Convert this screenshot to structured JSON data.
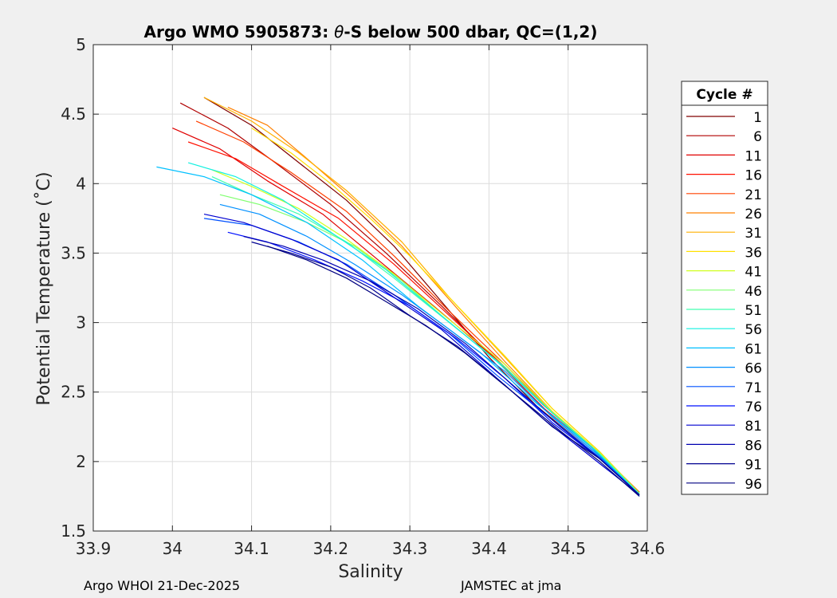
{
  "chart_data": {
    "type": "line",
    "title_parts": [
      "Argo WMO 5905873: ",
      "θ",
      "-S below 500 dbar,  QC=(1,2)"
    ],
    "xlabel": "Salinity",
    "ylabel": "Potential Temperature (˚C)",
    "xlim": [
      33.9,
      34.6
    ],
    "ylim": [
      1.5,
      5
    ],
    "xticks": [
      33.9,
      34.0,
      34.1,
      34.2,
      34.3,
      34.4,
      34.5,
      34.6
    ],
    "xtick_labels": [
      "33.9",
      "34",
      "34.1",
      "34.2",
      "34.3",
      "34.4",
      "34.5",
      "34.6"
    ],
    "yticks": [
      1.5,
      2,
      2.5,
      3,
      3.5,
      4,
      4.5,
      5
    ],
    "ytick_labels": [
      "1.5",
      "2",
      "2.5",
      "3",
      "3.5",
      "4",
      "4.5",
      "5"
    ],
    "grid": true,
    "legend_title": "Cycle #",
    "legend_position": "right",
    "series": [
      {
        "name": "1",
        "color": "#800000",
        "x": [
          34.04,
          34.1,
          34.16,
          34.22,
          34.28,
          34.34,
          34.4,
          34.46,
          34.52,
          34.59
        ],
        "y": [
          4.62,
          4.42,
          4.15,
          3.88,
          3.55,
          3.15,
          2.75,
          2.4,
          2.12,
          1.77
        ]
      },
      {
        "name": "6",
        "color": "#b00000",
        "x": [
          34.01,
          34.07,
          34.13,
          34.2,
          34.27,
          34.34,
          34.4,
          34.47,
          34.53,
          34.59
        ],
        "y": [
          4.58,
          4.4,
          4.15,
          3.85,
          3.5,
          3.12,
          2.78,
          2.4,
          2.1,
          1.78
        ]
      },
      {
        "name": "11",
        "color": "#e00000",
        "x": [
          34.0,
          34.06,
          34.12,
          34.19,
          34.26,
          34.33,
          34.4,
          34.47,
          34.53,
          34.59
        ],
        "y": [
          4.4,
          4.25,
          4.02,
          3.78,
          3.45,
          3.12,
          2.78,
          2.38,
          2.1,
          1.77
        ]
      },
      {
        "name": "16",
        "color": "#ff1000",
        "x": [
          34.02,
          34.08,
          34.14,
          34.21,
          34.28,
          34.35,
          34.42,
          34.48,
          34.54,
          34.59
        ],
        "y": [
          4.3,
          4.18,
          3.98,
          3.75,
          3.42,
          3.05,
          2.68,
          2.35,
          2.05,
          1.78
        ]
      },
      {
        "name": "21",
        "color": "#ff4000",
        "x": [
          34.03,
          34.09,
          34.15,
          34.22,
          34.28,
          34.35,
          34.42,
          34.48,
          34.54,
          34.59
        ],
        "y": [
          4.45,
          4.3,
          4.08,
          3.8,
          3.48,
          3.08,
          2.7,
          2.35,
          2.06,
          1.77
        ]
      },
      {
        "name": "26",
        "color": "#ff8000",
        "x": [
          34.07,
          34.12,
          34.17,
          34.23,
          34.29,
          34.36,
          34.42,
          34.48,
          34.54,
          34.59
        ],
        "y": [
          4.55,
          4.42,
          4.18,
          3.88,
          3.55,
          3.1,
          2.72,
          2.36,
          2.06,
          1.78
        ]
      },
      {
        "name": "31",
        "color": "#ffb000",
        "x": [
          34.04,
          34.1,
          34.16,
          34.22,
          34.29,
          34.35,
          34.42,
          34.48,
          34.54,
          34.59
        ],
        "y": [
          4.62,
          4.45,
          4.22,
          3.95,
          3.58,
          3.18,
          2.75,
          2.38,
          2.07,
          1.77
        ]
      },
      {
        "name": "36",
        "color": "#ffe000",
        "x": [
          34.1,
          34.15,
          34.2,
          34.25,
          34.3,
          34.36,
          34.42,
          34.48,
          34.54,
          34.59
        ],
        "y": [
          4.4,
          4.22,
          4.0,
          3.75,
          3.48,
          3.12,
          2.76,
          2.38,
          2.07,
          1.77
        ]
      },
      {
        "name": "41",
        "color": "#d0ff20",
        "x": [
          34.05,
          34.1,
          34.16,
          34.22,
          34.28,
          34.35,
          34.42,
          34.48,
          34.54,
          34.59
        ],
        "y": [
          4.1,
          3.98,
          3.82,
          3.6,
          3.35,
          3.02,
          2.7,
          2.36,
          2.06,
          1.77
        ]
      },
      {
        "name": "46",
        "color": "#80ff70",
        "x": [
          34.06,
          34.11,
          34.17,
          34.23,
          34.29,
          34.35,
          34.42,
          34.48,
          34.54,
          34.59
        ],
        "y": [
          3.92,
          3.85,
          3.72,
          3.55,
          3.3,
          3.0,
          2.68,
          2.35,
          2.06,
          1.77
        ]
      },
      {
        "name": "51",
        "color": "#40ffb0",
        "x": [
          34.05,
          34.1,
          34.16,
          34.22,
          34.28,
          34.35,
          34.42,
          34.48,
          34.54,
          34.59
        ],
        "y": [
          4.05,
          3.92,
          3.78,
          3.58,
          3.32,
          3.0,
          2.68,
          2.35,
          2.05,
          1.77
        ]
      },
      {
        "name": "56",
        "color": "#10f0e0",
        "x": [
          34.02,
          34.08,
          34.14,
          34.2,
          34.27,
          34.34,
          34.41,
          34.48,
          34.54,
          34.59
        ],
        "y": [
          4.15,
          4.05,
          3.88,
          3.65,
          3.38,
          3.05,
          2.72,
          2.35,
          2.05,
          1.76
        ]
      },
      {
        "name": "61",
        "color": "#00c0ff",
        "x": [
          33.98,
          34.04,
          34.1,
          34.17,
          34.24,
          34.31,
          34.39,
          34.46,
          34.53,
          34.59
        ],
        "y": [
          4.12,
          4.05,
          3.92,
          3.72,
          3.45,
          3.12,
          2.78,
          2.42,
          2.1,
          1.75
        ]
      },
      {
        "name": "66",
        "color": "#0090ff",
        "x": [
          34.06,
          34.11,
          34.17,
          34.23,
          34.29,
          34.35,
          34.42,
          34.48,
          34.54,
          34.59
        ],
        "y": [
          3.85,
          3.78,
          3.62,
          3.42,
          3.2,
          2.95,
          2.65,
          2.32,
          2.04,
          1.76
        ]
      },
      {
        "name": "71",
        "color": "#0050ff",
        "x": [
          34.04,
          34.1,
          34.16,
          34.22,
          34.28,
          34.35,
          34.41,
          34.48,
          34.54,
          34.59
        ],
        "y": [
          3.75,
          3.7,
          3.58,
          3.42,
          3.2,
          2.92,
          2.62,
          2.3,
          2.03,
          1.76
        ]
      },
      {
        "name": "76",
        "color": "#0010ff",
        "x": [
          34.07,
          34.12,
          34.18,
          34.24,
          34.3,
          34.36,
          34.42,
          34.48,
          34.54,
          34.59
        ],
        "y": [
          3.65,
          3.58,
          3.45,
          3.3,
          3.12,
          2.88,
          2.6,
          2.28,
          2.02,
          1.76
        ]
      },
      {
        "name": "81",
        "color": "#0000d0",
        "x": [
          34.04,
          34.09,
          34.15,
          34.21,
          34.27,
          34.34,
          34.4,
          34.47,
          34.53,
          34.59
        ],
        "y": [
          3.78,
          3.72,
          3.6,
          3.45,
          3.22,
          2.95,
          2.65,
          2.3,
          2.03,
          1.76
        ]
      },
      {
        "name": "86",
        "color": "#0000b0",
        "x": [
          34.09,
          34.14,
          34.19,
          34.25,
          34.31,
          34.37,
          34.43,
          34.49,
          34.54,
          34.59
        ],
        "y": [
          3.62,
          3.55,
          3.45,
          3.3,
          3.1,
          2.85,
          2.55,
          2.25,
          2.02,
          1.76
        ]
      },
      {
        "name": "91",
        "color": "#000090",
        "x": [
          34.1,
          34.15,
          34.2,
          34.25,
          34.3,
          34.36,
          34.42,
          34.48,
          34.54,
          34.59
        ],
        "y": [
          3.58,
          3.5,
          3.4,
          3.25,
          3.05,
          2.83,
          2.55,
          2.25,
          2.02,
          1.76
        ]
      },
      {
        "name": "96",
        "color": "#000080",
        "x": [
          34.12,
          34.17,
          34.22,
          34.27,
          34.32,
          34.37,
          34.43,
          34.49,
          34.54,
          34.59
        ],
        "y": [
          3.55,
          3.45,
          3.32,
          3.15,
          2.98,
          2.78,
          2.5,
          2.22,
          2.0,
          1.75
        ]
      }
    ]
  },
  "footer": {
    "left": "Argo WHOI 21-Dec-2025",
    "right": "JAMSTEC at jma"
  }
}
